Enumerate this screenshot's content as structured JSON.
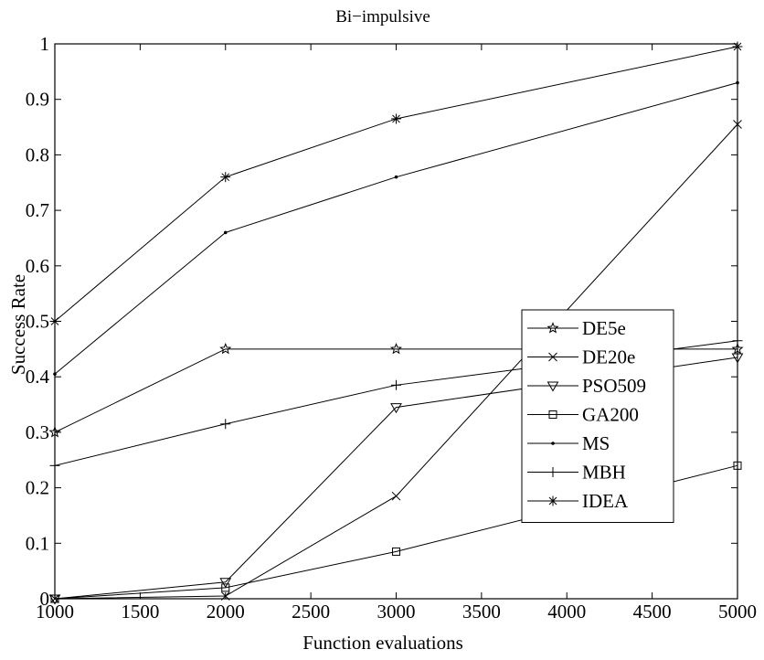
{
  "chart_data": {
    "type": "line",
    "title": "Bi−impulsive",
    "xlabel": "Function evaluations",
    "ylabel": "Success Rate",
    "xlim": [
      1000,
      5000
    ],
    "ylim": [
      0,
      1
    ],
    "x_ticks": [
      "1000",
      "1500",
      "2000",
      "2500",
      "3000",
      "3500",
      "4000",
      "4500",
      "5000"
    ],
    "y_ticks": [
      "0",
      "0.1",
      "0.2",
      "0.3",
      "0.4",
      "0.5",
      "0.6",
      "0.7",
      "0.8",
      "0.9",
      "1"
    ],
    "grid": false,
    "legend_position": "center-right",
    "x": [
      1000,
      2000,
      3000,
      5000
    ],
    "series": [
      {
        "name": "DE5e",
        "marker": "star",
        "values": [
          0.3,
          0.45,
          0.45,
          0.45
        ]
      },
      {
        "name": "DE20e",
        "marker": "x",
        "values": [
          0.0,
          0.005,
          0.185,
          0.855
        ]
      },
      {
        "name": "PSO509",
        "marker": "triangle-down",
        "values": [
          0.0,
          0.03,
          0.345,
          0.435
        ]
      },
      {
        "name": "GA200",
        "marker": "square",
        "values": [
          0.0,
          0.02,
          0.085,
          0.24
        ]
      },
      {
        "name": "MS",
        "marker": "dot",
        "values": [
          0.405,
          0.66,
          0.76,
          0.93
        ]
      },
      {
        "name": "MBH",
        "marker": "plus",
        "values": [
          0.24,
          0.315,
          0.385,
          0.465
        ]
      },
      {
        "name": "IDEA",
        "marker": "asterisk",
        "values": [
          0.5,
          0.76,
          0.865,
          0.995
        ]
      }
    ],
    "line_color": "#000000"
  }
}
